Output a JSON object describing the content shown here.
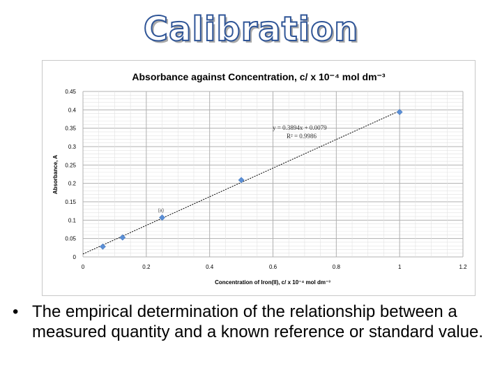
{
  "slide": {
    "title": "Calibration",
    "bullet_symbol": "•",
    "bullet_text": "The empirical determination of the relationship between a measured quantity and a known reference or standard value."
  },
  "colors": {
    "title_outline": "#2f5597",
    "marker": "#5b8fd6",
    "trendline": "#000000",
    "grid": "#b0b0b0"
  },
  "chart_data": {
    "type": "scatter",
    "title": "Absorbance against Concentration, c/ x 10⁻⁴ mol dm⁻³",
    "xlabel": "Concentration of Iron(II), c/ x 10⁻⁴ mol dm⁻³",
    "ylabel": "Absorbance, A",
    "xlim": [
      0,
      1.2
    ],
    "ylim": [
      0,
      0.45
    ],
    "x_ticks": [
      "0",
      "0.2",
      "0.4",
      "0.6",
      "0.8",
      "1",
      "1.2"
    ],
    "y_ticks": [
      "0",
      "0.05",
      "0.1",
      "0.15",
      "0.2",
      "0.25",
      "0.3",
      "0.35",
      "0.4",
      "0.45"
    ],
    "grid": true,
    "series": [
      {
        "x": [
          0.0625,
          0.125,
          0.25,
          0.5,
          1.0
        ],
        "y": [
          0.028,
          0.053,
          0.107,
          0.209,
          0.394
        ]
      }
    ],
    "trendline": {
      "slope": 0.3894,
      "intercept": 0.0079,
      "equation": "y = 0.3894x + 0.0079",
      "r2": "R² = 0.9986"
    },
    "annotations": [
      {
        "text": "(a)",
        "x": 0.25,
        "y": 0.107
      }
    ]
  }
}
